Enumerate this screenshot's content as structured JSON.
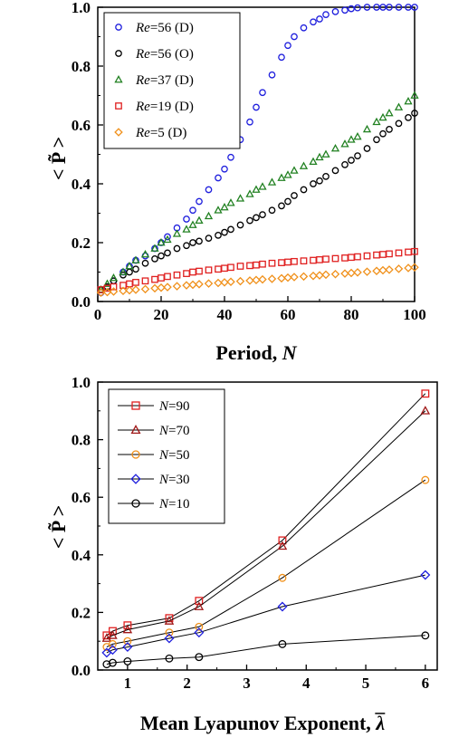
{
  "chart_data": [
    {
      "type": "scatter",
      "ylabel": "< P̃ >",
      "xlabel_text": "Period, ",
      "xlabel_var": "N",
      "xlim": [
        0,
        100
      ],
      "ylim": [
        0,
        1.0
      ],
      "xticks": [
        0,
        20,
        40,
        60,
        80,
        100
      ],
      "yticks": [
        0.0,
        0.2,
        0.4,
        0.6,
        0.8,
        1.0
      ],
      "xtick_labels": [
        "0",
        "20",
        "40",
        "60",
        "80",
        "100"
      ],
      "ytick_labels": [
        "0.0",
        "0.2",
        "0.4",
        "0.6",
        "0.8",
        "1.0"
      ],
      "legend_position": "top-left",
      "series": [
        {
          "name_var": "Re",
          "name_rest": "=56 (D)",
          "color": "#1f1fdd",
          "marker": "circle",
          "x": [
            1,
            3,
            5,
            8,
            10,
            12,
            15,
            18,
            20,
            22,
            25,
            28,
            30,
            32,
            35,
            38,
            40,
            42,
            45,
            48,
            50,
            52,
            55,
            58,
            60,
            62,
            65,
            68,
            70,
            72,
            75,
            78,
            80,
            82,
            85,
            88,
            90,
            92,
            95,
            98,
            100
          ],
          "y": [
            0.03,
            0.05,
            0.07,
            0.1,
            0.12,
            0.14,
            0.155,
            0.18,
            0.2,
            0.22,
            0.25,
            0.28,
            0.31,
            0.34,
            0.38,
            0.42,
            0.45,
            0.49,
            0.55,
            0.61,
            0.66,
            0.71,
            0.77,
            0.83,
            0.87,
            0.9,
            0.93,
            0.95,
            0.96,
            0.975,
            0.985,
            0.99,
            0.995,
            0.998,
            1.0,
            1.0,
            1.0,
            1.0,
            1.0,
            1.0,
            1.0
          ]
        },
        {
          "name_var": "Re",
          "name_rest": "=56 (O)",
          "color": "#000000",
          "marker": "circle",
          "x": [
            1,
            3,
            5,
            8,
            10,
            12,
            15,
            18,
            20,
            22,
            25,
            28,
            30,
            32,
            35,
            38,
            40,
            42,
            45,
            48,
            50,
            52,
            55,
            58,
            60,
            62,
            65,
            68,
            70,
            72,
            75,
            78,
            80,
            82,
            85,
            88,
            90,
            92,
            95,
            98,
            100
          ],
          "y": [
            0.04,
            0.05,
            0.07,
            0.09,
            0.1,
            0.11,
            0.13,
            0.145,
            0.155,
            0.165,
            0.18,
            0.19,
            0.2,
            0.205,
            0.215,
            0.225,
            0.235,
            0.245,
            0.26,
            0.275,
            0.285,
            0.295,
            0.31,
            0.325,
            0.34,
            0.36,
            0.38,
            0.4,
            0.41,
            0.425,
            0.445,
            0.465,
            0.48,
            0.495,
            0.52,
            0.55,
            0.57,
            0.585,
            0.605,
            0.625,
            0.64
          ]
        },
        {
          "name_var": "Re",
          "name_rest": "=37 (D)",
          "color": "#208020",
          "marker": "triangle",
          "x": [
            1,
            3,
            5,
            8,
            10,
            12,
            15,
            18,
            20,
            22,
            25,
            28,
            30,
            32,
            35,
            38,
            40,
            42,
            45,
            48,
            50,
            52,
            55,
            58,
            60,
            62,
            65,
            68,
            70,
            72,
            75,
            78,
            80,
            82,
            85,
            88,
            90,
            92,
            95,
            98,
            100
          ],
          "y": [
            0.04,
            0.06,
            0.08,
            0.1,
            0.12,
            0.14,
            0.16,
            0.18,
            0.2,
            0.21,
            0.23,
            0.245,
            0.26,
            0.275,
            0.29,
            0.31,
            0.32,
            0.335,
            0.35,
            0.365,
            0.38,
            0.39,
            0.405,
            0.42,
            0.43,
            0.445,
            0.46,
            0.475,
            0.49,
            0.5,
            0.52,
            0.535,
            0.55,
            0.56,
            0.585,
            0.61,
            0.625,
            0.64,
            0.66,
            0.68,
            0.7
          ]
        },
        {
          "name_var": "Re",
          "name_rest": "=19 (D)",
          "color": "#e02020",
          "marker": "square",
          "x": [
            1,
            3,
            5,
            8,
            10,
            12,
            15,
            18,
            20,
            22,
            25,
            28,
            30,
            32,
            35,
            38,
            40,
            42,
            45,
            48,
            50,
            52,
            55,
            58,
            60,
            62,
            65,
            68,
            70,
            72,
            75,
            78,
            80,
            82,
            85,
            88,
            90,
            92,
            95,
            98,
            100
          ],
          "y": [
            0.04,
            0.045,
            0.05,
            0.055,
            0.06,
            0.065,
            0.07,
            0.075,
            0.08,
            0.085,
            0.09,
            0.095,
            0.1,
            0.103,
            0.107,
            0.11,
            0.113,
            0.116,
            0.12,
            0.122,
            0.124,
            0.127,
            0.13,
            0.132,
            0.134,
            0.136,
            0.138,
            0.14,
            0.142,
            0.144,
            0.146,
            0.148,
            0.15,
            0.152,
            0.155,
            0.158,
            0.16,
            0.162,
            0.165,
            0.168,
            0.17
          ]
        },
        {
          "name_var": "Re",
          "name_rest": "=5 (D)",
          "color": "#f0901a",
          "marker": "diamond",
          "x": [
            1,
            3,
            5,
            8,
            10,
            12,
            15,
            18,
            20,
            22,
            25,
            28,
            30,
            32,
            35,
            38,
            40,
            42,
            45,
            48,
            50,
            52,
            55,
            58,
            60,
            62,
            65,
            68,
            70,
            72,
            75,
            78,
            80,
            82,
            85,
            88,
            90,
            92,
            95,
            98,
            100
          ],
          "y": [
            0.03,
            0.032,
            0.034,
            0.036,
            0.038,
            0.04,
            0.042,
            0.045,
            0.047,
            0.049,
            0.052,
            0.055,
            0.057,
            0.059,
            0.061,
            0.063,
            0.065,
            0.067,
            0.069,
            0.071,
            0.073,
            0.075,
            0.077,
            0.079,
            0.081,
            0.083,
            0.085,
            0.087,
            0.089,
            0.091,
            0.093,
            0.095,
            0.097,
            0.099,
            0.101,
            0.104,
            0.106,
            0.108,
            0.111,
            0.114,
            0.116
          ]
        }
      ]
    },
    {
      "type": "line",
      "ylabel": "< P̃ >",
      "xlabel_text": "Mean Lyapunov Exponent, ",
      "xlabel_var": "λ",
      "xlim": [
        0.5,
        6.2
      ],
      "ylim": [
        0,
        1.0
      ],
      "xticks": [
        1,
        2,
        3,
        4,
        5,
        6
      ],
      "yticks": [
        0.0,
        0.2,
        0.4,
        0.6,
        0.8,
        1.0
      ],
      "xtick_labels": [
        "1",
        "2",
        "3",
        "4",
        "5",
        "6"
      ],
      "ytick_labels": [
        "0.0",
        "0.2",
        "0.4",
        "0.6",
        "0.8",
        "1.0"
      ],
      "legend_position": "top-left",
      "x": [
        0.65,
        0.75,
        1.0,
        1.7,
        2.2,
        3.6,
        6.0
      ],
      "series": [
        {
          "name_var": "N",
          "name_rest": "=90",
          "color": "#e02020",
          "marker": "square",
          "values": [
            0.12,
            0.135,
            0.155,
            0.18,
            0.24,
            0.45,
            0.96
          ]
        },
        {
          "name_var": "N",
          "name_rest": "=70",
          "color": "#a01818",
          "marker": "triangle",
          "values": [
            0.11,
            0.12,
            0.14,
            0.17,
            0.22,
            0.43,
            0.9
          ]
        },
        {
          "name_var": "N",
          "name_rest": "=50",
          "color": "#f0901a",
          "marker": "circle",
          "values": [
            0.08,
            0.09,
            0.1,
            0.13,
            0.15,
            0.32,
            0.66
          ]
        },
        {
          "name_var": "N",
          "name_rest": "=30",
          "color": "#1f1fdd",
          "marker": "diamond",
          "values": [
            0.06,
            0.07,
            0.08,
            0.11,
            0.13,
            0.22,
            0.33
          ]
        },
        {
          "name_var": "N",
          "name_rest": "=10",
          "color": "#000000",
          "marker": "circle",
          "values": [
            0.02,
            0.025,
            0.03,
            0.04,
            0.045,
            0.09,
            0.12
          ]
        }
      ]
    }
  ]
}
